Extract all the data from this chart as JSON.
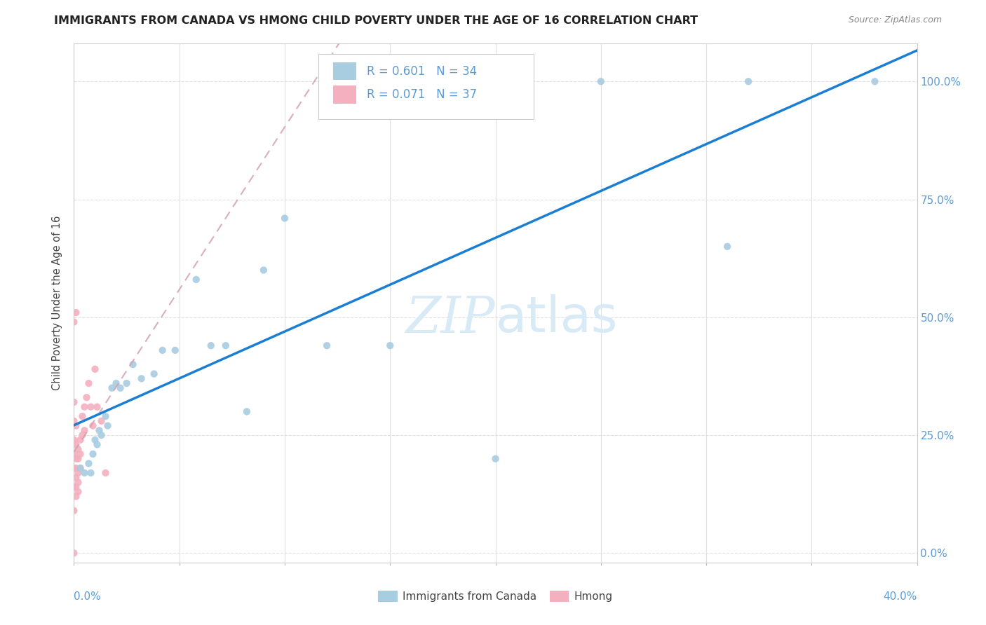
{
  "title": "IMMIGRANTS FROM CANADA VS HMONG CHILD POVERTY UNDER THE AGE OF 16 CORRELATION CHART",
  "source": "Source: ZipAtlas.com",
  "ylabel": "Child Poverty Under the Age of 16",
  "ytick_labels": [
    "0.0%",
    "25.0%",
    "50.0%",
    "75.0%",
    "100.0%"
  ],
  "ytick_values": [
    0.0,
    0.25,
    0.5,
    0.75,
    1.0
  ],
  "xmin": 0.0,
  "xmax": 0.4,
  "ymin": -0.02,
  "ymax": 1.08,
  "legend_series": [
    "Immigrants from Canada",
    "Hmong"
  ],
  "canada_R": 0.601,
  "canada_N": 34,
  "hmong_R": 0.071,
  "hmong_N": 37,
  "canada_color": "#a8cce0",
  "hmong_color": "#f4b0bf",
  "canada_line_color": "#1a7fd4",
  "hmong_line_color": "#d4a0b0",
  "watermark_color": "#d8eaf6",
  "background_color": "#ffffff",
  "grid_color": "#e0e0e0",
  "tick_label_color": "#5b9bd5",
  "canada_points_x": [
    0.003,
    0.005,
    0.007,
    0.008,
    0.009,
    0.01,
    0.011,
    0.012,
    0.013,
    0.015,
    0.016,
    0.018,
    0.02,
    0.022,
    0.025,
    0.028,
    0.032,
    0.038,
    0.042,
    0.048,
    0.058,
    0.065,
    0.072,
    0.082,
    0.09,
    0.1,
    0.12,
    0.15,
    0.175,
    0.2,
    0.25,
    0.31,
    0.32,
    0.38
  ],
  "canada_points_y": [
    0.18,
    0.17,
    0.19,
    0.17,
    0.21,
    0.24,
    0.23,
    0.26,
    0.25,
    0.29,
    0.27,
    0.35,
    0.36,
    0.35,
    0.36,
    0.4,
    0.37,
    0.38,
    0.43,
    0.43,
    0.58,
    0.44,
    0.44,
    0.3,
    0.6,
    0.71,
    0.44,
    0.44,
    1.0,
    0.2,
    1.0,
    0.65,
    1.0,
    1.0
  ],
  "hmong_points_x": [
    0.0,
    0.0,
    0.0,
    0.0,
    0.0,
    0.0,
    0.0,
    0.001,
    0.001,
    0.001,
    0.001,
    0.001,
    0.001,
    0.001,
    0.002,
    0.002,
    0.002,
    0.002,
    0.002,
    0.003,
    0.003,
    0.003,
    0.004,
    0.004,
    0.005,
    0.005,
    0.006,
    0.007,
    0.008,
    0.009,
    0.01,
    0.011,
    0.013,
    0.015,
    0.0,
    0.001,
    0.0
  ],
  "hmong_points_y": [
    0.49,
    0.32,
    0.28,
    0.24,
    0.21,
    0.18,
    0.0,
    0.27,
    0.23,
    0.2,
    0.18,
    0.16,
    0.14,
    0.12,
    0.22,
    0.2,
    0.17,
    0.15,
    0.13,
    0.24,
    0.21,
    0.18,
    0.29,
    0.25,
    0.31,
    0.26,
    0.33,
    0.36,
    0.31,
    0.27,
    0.39,
    0.31,
    0.28,
    0.17,
    0.09,
    0.51,
    0.14
  ]
}
